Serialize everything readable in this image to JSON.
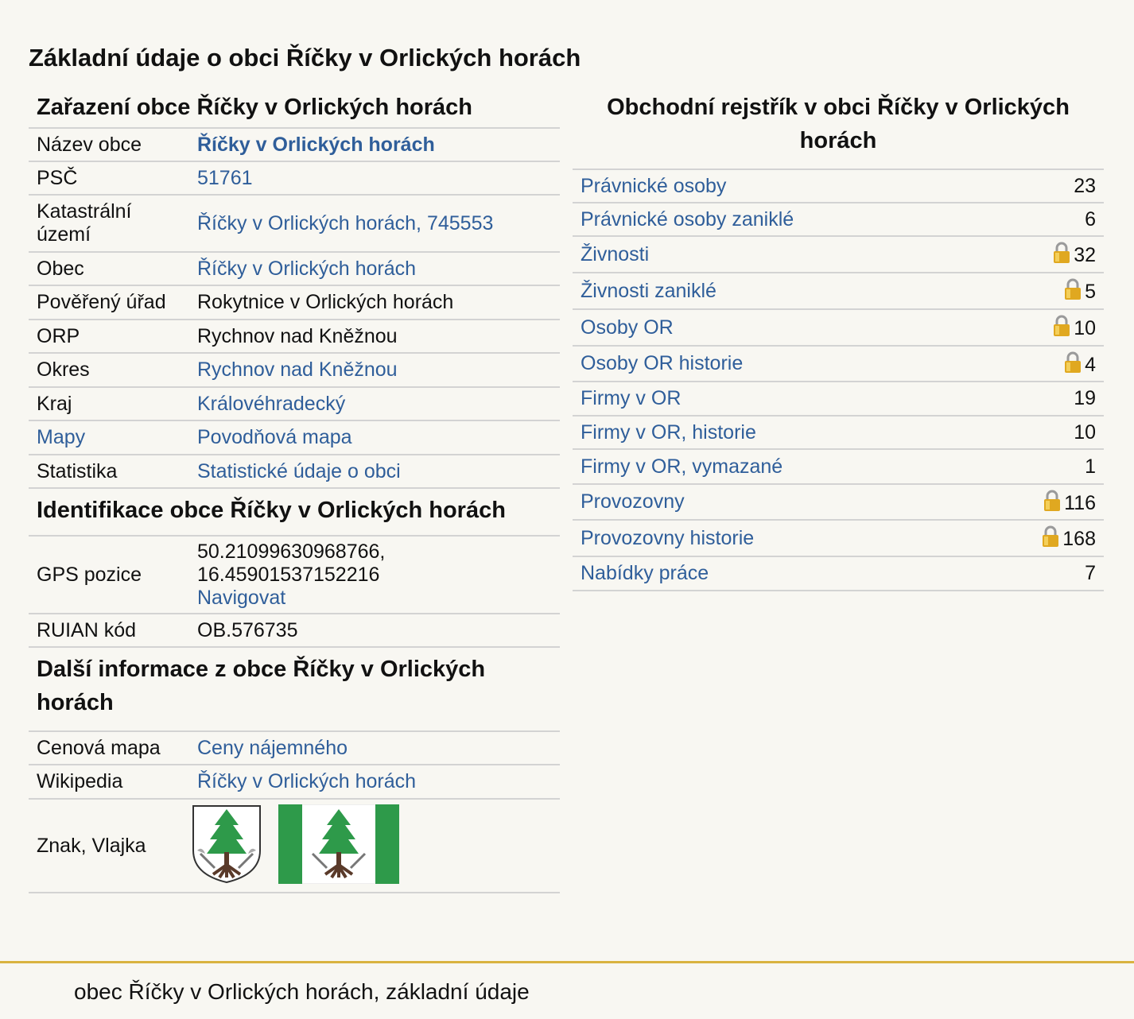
{
  "page_title": "Základní údaje o obci Říčky v Orlických horách",
  "zarazeni": {
    "heading": "Zařazení obce Říčky v Orlických horách",
    "rows": {
      "nazev": {
        "label": "Název obce",
        "value": "Říčky v Orlických horách"
      },
      "psc": {
        "label": "PSČ",
        "value": "51761"
      },
      "katastr": {
        "label": "Katastrální území",
        "value": "Říčky v Orlických horách, 745553"
      },
      "obec": {
        "label": "Obec",
        "value": "Říčky v Orlických horách"
      },
      "povereny": {
        "label": "Pověřený úřad",
        "value": "Rokytnice v Orlických horách"
      },
      "orp": {
        "label": "ORP",
        "value": "Rychnov nad Kněžnou"
      },
      "okres": {
        "label": "Okres",
        "value": "Rychnov nad Kněžnou"
      },
      "kraj": {
        "label": "Kraj",
        "value": "Královéhradecký"
      },
      "mapy": {
        "label": "Mapy",
        "value": "Povodňová mapa"
      },
      "statistika": {
        "label": "Statistika",
        "value": "Statistické údaje o obci"
      }
    }
  },
  "identifikace": {
    "heading": "Identifikace obce Říčky v Orlických horách",
    "gps": {
      "label": "GPS pozice",
      "lat": "50.21099630968766,",
      "lon": "16.45901537152216",
      "nav": "Navigovat"
    },
    "ruian": {
      "label": "RUIAN kód",
      "value": "OB.576735"
    }
  },
  "dalsi": {
    "heading": "Další informace z obce Říčky v Orlických horách",
    "cenova": {
      "label": "Cenová mapa",
      "value": "Ceny nájemného"
    },
    "wiki": {
      "label": "Wikipedia",
      "value": "Říčky v Orlických horách"
    },
    "znak": {
      "label": "Znak, Vlajka"
    }
  },
  "rejstrik": {
    "heading": "Obchodní rejstřík v obci Říčky v Orlických horách",
    "rows": [
      {
        "label": "Právnické osoby",
        "count": "23",
        "locked": false
      },
      {
        "label": "Právnické osoby zaniklé",
        "count": "6",
        "locked": false
      },
      {
        "label": "Živnosti",
        "count": "32",
        "locked": true
      },
      {
        "label": "Živnosti zaniklé",
        "count": "5",
        "locked": true
      },
      {
        "label": "Osoby OR",
        "count": "10",
        "locked": true
      },
      {
        "label": "Osoby OR historie",
        "count": "4",
        "locked": true
      },
      {
        "label": "Firmy v OR",
        "count": "19",
        "locked": false
      },
      {
        "label": "Firmy v OR, historie",
        "count": "10",
        "locked": false
      },
      {
        "label": "Firmy v OR, vymazané",
        "count": "1",
        "locked": false
      },
      {
        "label": "Provozovny",
        "count": "116",
        "locked": true
      },
      {
        "label": "Provozovny historie",
        "count": "168",
        "locked": true
      },
      {
        "label": "Nabídky práce",
        "count": "7",
        "locked": false
      }
    ]
  },
  "footer": "obec Říčky v Orlických horách, základní údaje",
  "colors": {
    "link": "#2f5e9a",
    "accent_line": "#d9b340",
    "tree_green": "#2e9a4a",
    "lock_gold": "#e0a820"
  }
}
